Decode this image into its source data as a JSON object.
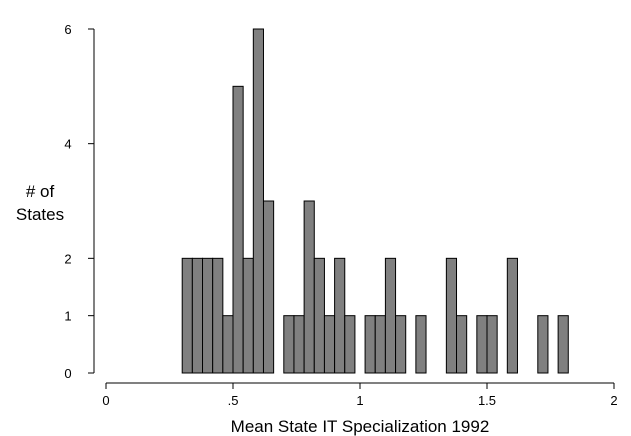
{
  "chart_data": {
    "type": "bar",
    "xlabel": "Mean State IT Specialization 1992",
    "ylabel_lines": [
      "# of",
      "States"
    ],
    "xlim": [
      0,
      2
    ],
    "ylim": [
      0,
      6
    ],
    "x_ticks": [
      {
        "value": 0,
        "label": "0"
      },
      {
        "value": 0.5,
        "label": ".5"
      },
      {
        "value": 1,
        "label": "1"
      },
      {
        "value": 1.5,
        "label": "1.5"
      },
      {
        "value": 2,
        "label": "2"
      }
    ],
    "y_ticks": [
      {
        "value": 0,
        "label": "0"
      },
      {
        "value": 1,
        "label": "1"
      },
      {
        "value": 2,
        "label": "2"
      },
      {
        "value": 4,
        "label": "4"
      },
      {
        "value": 6,
        "label": "6"
      }
    ],
    "bin_width": 0.04,
    "bins": [
      {
        "start": 0.3,
        "count": 2
      },
      {
        "start": 0.34,
        "count": 2
      },
      {
        "start": 0.38,
        "count": 2
      },
      {
        "start": 0.42,
        "count": 2
      },
      {
        "start": 0.46,
        "count": 1
      },
      {
        "start": 0.5,
        "count": 5
      },
      {
        "start": 0.54,
        "count": 2
      },
      {
        "start": 0.58,
        "count": 6
      },
      {
        "start": 0.62,
        "count": 3
      },
      {
        "start": 0.7,
        "count": 1
      },
      {
        "start": 0.74,
        "count": 1
      },
      {
        "start": 0.78,
        "count": 3
      },
      {
        "start": 0.82,
        "count": 2
      },
      {
        "start": 0.86,
        "count": 1
      },
      {
        "start": 0.9,
        "count": 2
      },
      {
        "start": 0.94,
        "count": 1
      },
      {
        "start": 1.02,
        "count": 1
      },
      {
        "start": 1.06,
        "count": 1
      },
      {
        "start": 1.1,
        "count": 2
      },
      {
        "start": 1.14,
        "count": 1
      },
      {
        "start": 1.22,
        "count": 1
      },
      {
        "start": 1.34,
        "count": 2
      },
      {
        "start": 1.38,
        "count": 1
      },
      {
        "start": 1.46,
        "count": 1
      },
      {
        "start": 1.5,
        "count": 1
      },
      {
        "start": 1.58,
        "count": 2
      },
      {
        "start": 1.7,
        "count": 1
      },
      {
        "start": 1.78,
        "count": 1
      }
    ],
    "bar_color": "#808080",
    "grid": false,
    "legend": "none"
  }
}
